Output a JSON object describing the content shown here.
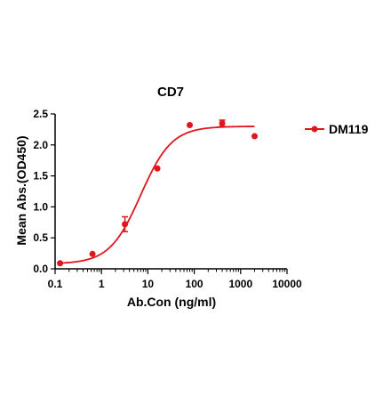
{
  "chart_data": {
    "type": "scatter",
    "title": "CD7",
    "xlabel": "Ab.Con (ng/ml)",
    "ylabel": "Mean Abs.(OD450)",
    "x_scale": "log10",
    "xlim": [
      0.1,
      10000
    ],
    "ylim": [
      0,
      2.5
    ],
    "x_ticks": [
      0.1,
      1,
      10,
      100,
      1000,
      10000
    ],
    "x_tick_labels": [
      "0.1",
      "1",
      "10",
      "100",
      "1000",
      "10000"
    ],
    "y_ticks": [
      0,
      0.5,
      1,
      1.5,
      2,
      2.5
    ],
    "y_tick_labels": [
      "0.0",
      "0.5",
      "1.0",
      "1.5",
      "2.0",
      "2.5"
    ],
    "grid": false,
    "legend_position": "top-right",
    "series": [
      {
        "name": "DM119",
        "color": "#e0161c",
        "points": [
          {
            "x": 0.128,
            "y": 0.09
          },
          {
            "x": 0.64,
            "y": 0.24
          },
          {
            "x": 3.2,
            "y": 0.72,
            "err": 0.12
          },
          {
            "x": 16,
            "y": 1.62
          },
          {
            "x": 80,
            "y": 2.32
          },
          {
            "x": 400,
            "y": 2.35,
            "err": 0.05
          },
          {
            "x": 2000,
            "y": 2.14
          }
        ],
        "fit_curve": {
          "model": "4PL",
          "bottom": 0.08,
          "top": 2.3,
          "ec50": 7,
          "hill": 1.3
        }
      }
    ]
  }
}
